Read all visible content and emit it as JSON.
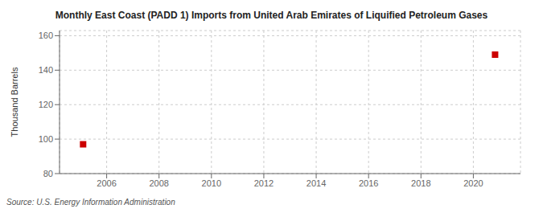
{
  "chart_data": {
    "type": "scatter",
    "title": "Monthly East Coast (PADD 1) Imports from United Arab Emirates of Liquified Petroleum Gases",
    "ylabel": "Thousand Barrels",
    "annotations": [
      "Source: U.S. Energy Information Administration"
    ],
    "x": [
      2005.1,
      2020.83
    ],
    "values": [
      97,
      149
    ],
    "xlim": [
      2004.2,
      2021.8
    ],
    "ylim": [
      80,
      163
    ],
    "xticks": [
      2006,
      2008,
      2010,
      2012,
      2014,
      2016,
      2018,
      2020
    ],
    "yticks": [
      80,
      100,
      120,
      140,
      160
    ],
    "color": "#cc0000",
    "marker": "square",
    "grid": true
  }
}
